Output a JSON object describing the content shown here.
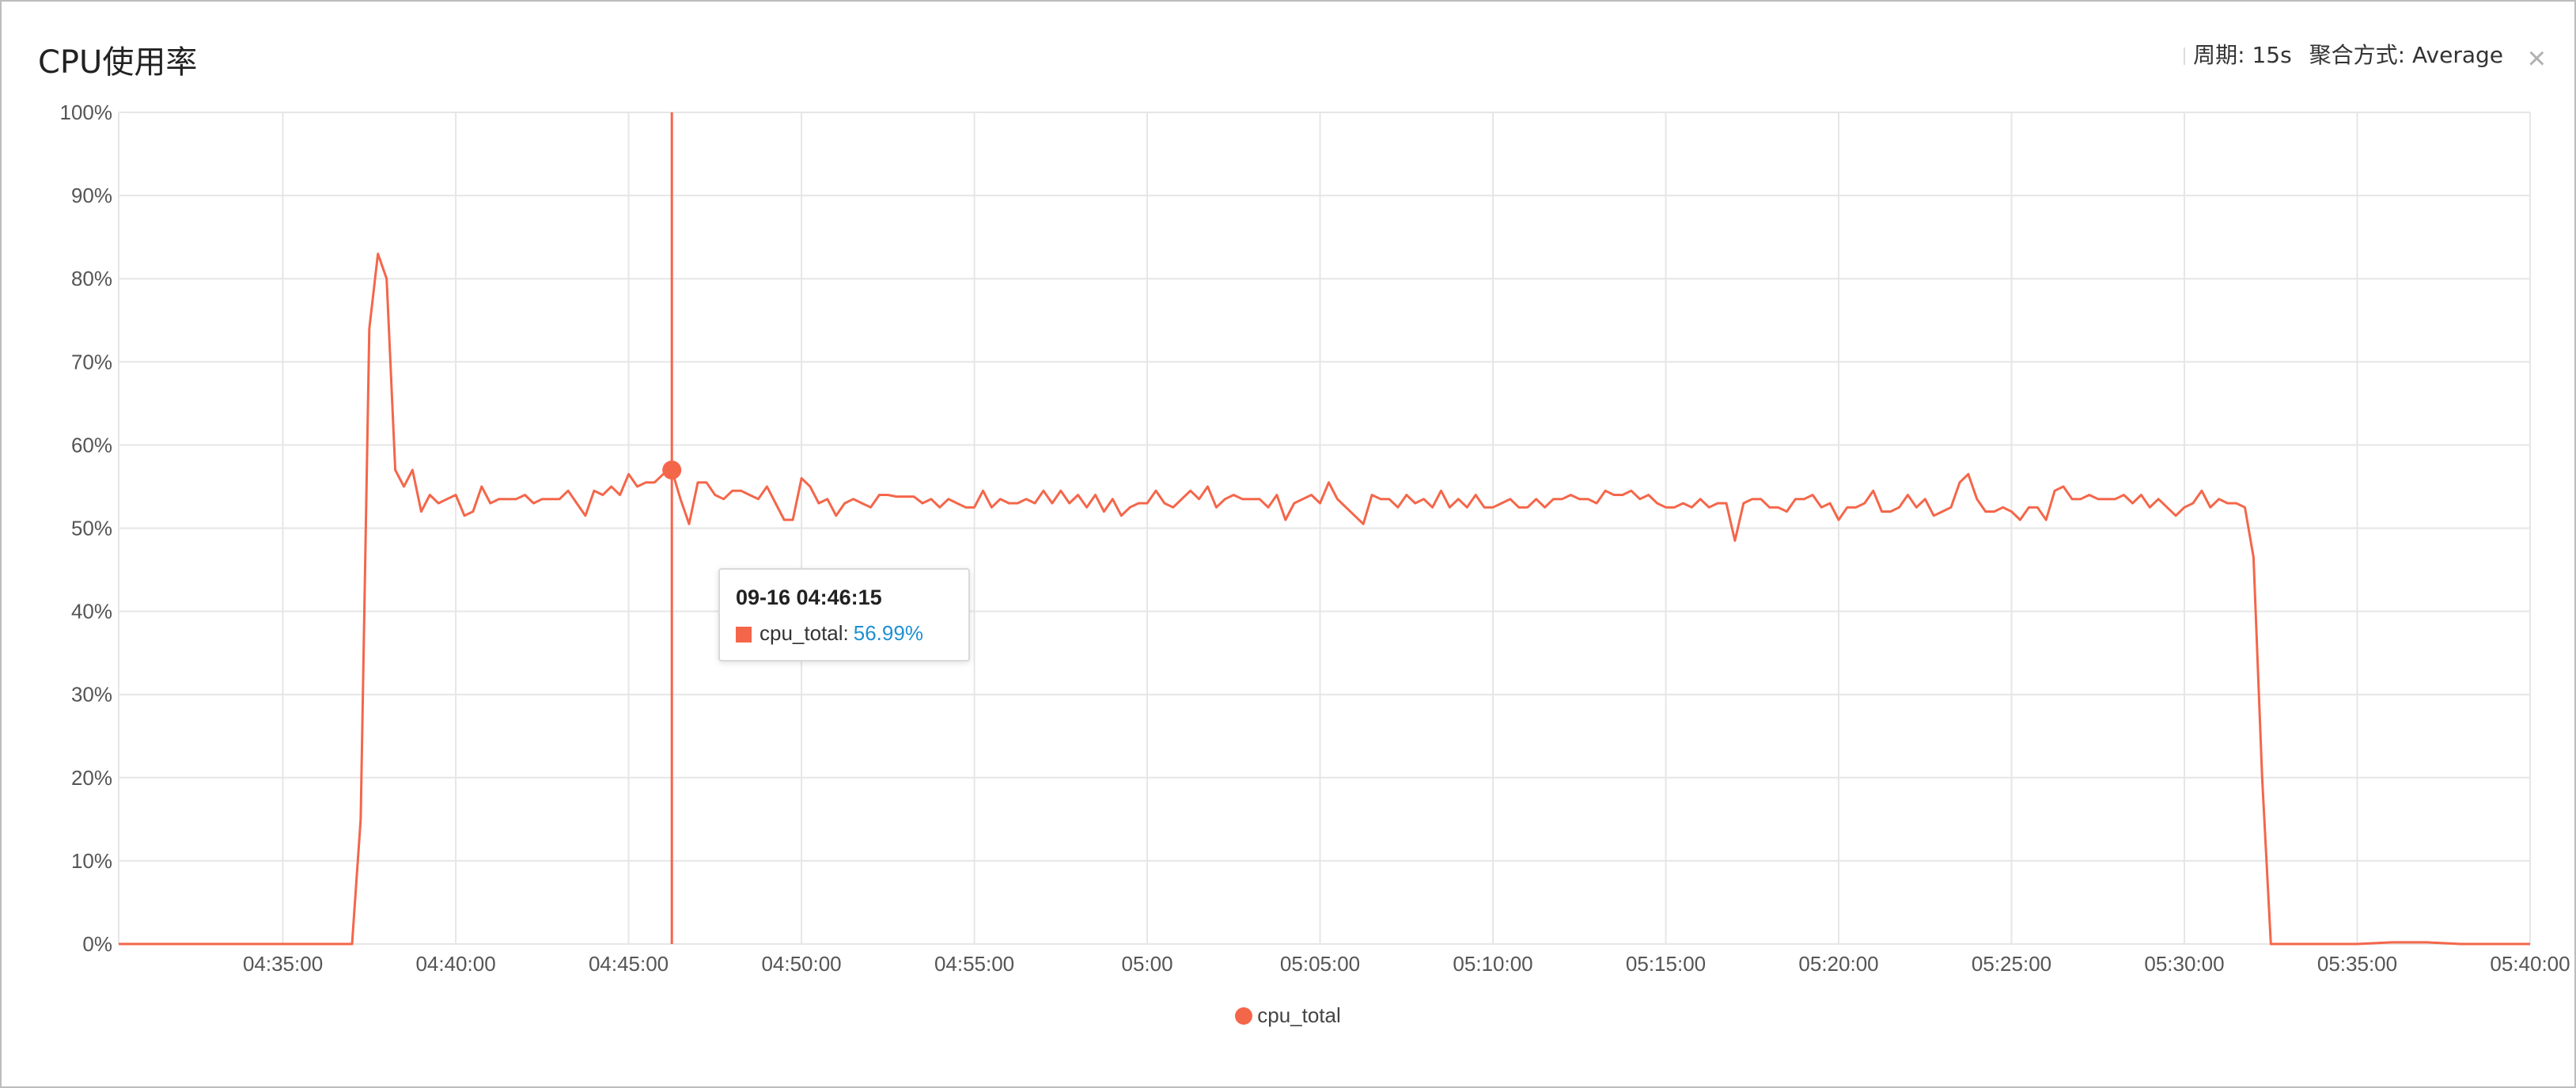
{
  "panel": {
    "title": "CPU使用率",
    "period_label": "周期: 15s",
    "aggregation_label": "聚合方式: Average",
    "close_icon": "close-icon"
  },
  "colors": {
    "series": "#f4664a",
    "grid": "#e6e6e6",
    "axis_text": "#555555",
    "tooltip_value": "#1f90d1"
  },
  "tooltip": {
    "time": "09-16 04:46:15",
    "series_name": "cpu_total",
    "value_text": "56.99%"
  },
  "legend": {
    "label": "cpu_total"
  },
  "chart_data": {
    "type": "line",
    "title": "CPU使用率",
    "xlabel": "",
    "ylabel": "",
    "ylim": [
      0,
      100
    ],
    "yticks": [
      "0%",
      "10%",
      "20%",
      "30%",
      "40%",
      "50%",
      "60%",
      "70%",
      "80%",
      "90%",
      "100%"
    ],
    "x_range": [
      "04:30:15",
      "05:40:00"
    ],
    "xticks": [
      "04:35:00",
      "04:40:00",
      "04:45:00",
      "04:50:00",
      "04:55:00",
      "05:00",
      "05:05:00",
      "05:10:00",
      "05:15:00",
      "05:20:00",
      "05:25:00",
      "05:30:00",
      "05:35:00",
      "05:40:00"
    ],
    "grid": true,
    "legend_position": "bottom",
    "highlight": {
      "x": "04:46:15",
      "y": 56.99
    },
    "series": [
      {
        "name": "cpu_total",
        "points": [
          [
            "04:30:15",
            0
          ],
          [
            "04:37:00",
            0
          ],
          [
            "04:37:15",
            15
          ],
          [
            "04:37:30",
            74
          ],
          [
            "04:37:45",
            83
          ],
          [
            "04:38:00",
            80
          ],
          [
            "04:38:15",
            57
          ],
          [
            "04:38:30",
            55
          ],
          [
            "04:38:45",
            57
          ],
          [
            "04:39:00",
            52
          ],
          [
            "04:39:15",
            54
          ],
          [
            "04:39:30",
            53
          ],
          [
            "04:39:45",
            53.5
          ],
          [
            "04:40:00",
            54
          ],
          [
            "04:40:15",
            51.5
          ],
          [
            "04:40:30",
            52
          ],
          [
            "04:40:45",
            55
          ],
          [
            "04:41:00",
            53
          ],
          [
            "04:41:15",
            53.5
          ],
          [
            "04:41:30",
            53.5
          ],
          [
            "04:41:45",
            53.5
          ],
          [
            "04:42:00",
            54
          ],
          [
            "04:42:15",
            53
          ],
          [
            "04:42:30",
            53.5
          ],
          [
            "04:42:45",
            53.5
          ],
          [
            "04:43:00",
            53.5
          ],
          [
            "04:43:15",
            54.5
          ],
          [
            "04:43:30",
            53
          ],
          [
            "04:43:45",
            51.5
          ],
          [
            "04:44:00",
            54.5
          ],
          [
            "04:44:15",
            54
          ],
          [
            "04:44:30",
            55
          ],
          [
            "04:44:45",
            54
          ],
          [
            "04:45:00",
            56.5
          ],
          [
            "04:45:15",
            55
          ],
          [
            "04:45:30",
            55.5
          ],
          [
            "04:45:45",
            55.5
          ],
          [
            "04:46:00",
            56.5
          ],
          [
            "04:46:15",
            56.99
          ],
          [
            "04:46:30",
            53.5
          ],
          [
            "04:46:45",
            50.5
          ],
          [
            "04:47:00",
            55.5
          ],
          [
            "04:47:15",
            55.5
          ],
          [
            "04:47:30",
            54
          ],
          [
            "04:47:45",
            53.5
          ],
          [
            "04:48:00",
            54.5
          ],
          [
            "04:48:15",
            54.5
          ],
          [
            "04:48:30",
            54
          ],
          [
            "04:48:45",
            53.5
          ],
          [
            "04:49:00",
            55
          ],
          [
            "04:49:15",
            53
          ],
          [
            "04:49:30",
            51
          ],
          [
            "04:49:45",
            51
          ],
          [
            "04:50:00",
            56
          ],
          [
            "04:50:15",
            55
          ],
          [
            "04:50:30",
            53
          ],
          [
            "04:50:45",
            53.5
          ],
          [
            "04:51:00",
            51.5
          ],
          [
            "04:51:15",
            53
          ],
          [
            "04:51:30",
            53.5
          ],
          [
            "04:51:45",
            53
          ],
          [
            "04:52:00",
            52.5
          ],
          [
            "04:52:15",
            54
          ],
          [
            "04:52:30",
            54
          ],
          [
            "04:52:45",
            53.8
          ],
          [
            "04:53:00",
            53.8
          ],
          [
            "04:53:15",
            53.8
          ],
          [
            "04:53:30",
            53
          ],
          [
            "04:53:45",
            53.5
          ],
          [
            "04:54:00",
            52.5
          ],
          [
            "04:54:15",
            53.5
          ],
          [
            "04:54:30",
            53
          ],
          [
            "04:54:45",
            52.5
          ],
          [
            "04:55:00",
            52.5
          ],
          [
            "04:55:15",
            54.5
          ],
          [
            "04:55:30",
            52.5
          ],
          [
            "04:55:45",
            53.5
          ],
          [
            "04:56:00",
            53
          ],
          [
            "04:56:15",
            53
          ],
          [
            "04:56:30",
            53.5
          ],
          [
            "04:56:45",
            53
          ],
          [
            "04:57:00",
            54.5
          ],
          [
            "04:57:15",
            53
          ],
          [
            "04:57:30",
            54.5
          ],
          [
            "04:57:45",
            53
          ],
          [
            "04:58:00",
            54
          ],
          [
            "04:58:15",
            52.5
          ],
          [
            "04:58:30",
            54
          ],
          [
            "04:58:45",
            52
          ],
          [
            "04:59:00",
            53.5
          ],
          [
            "04:59:15",
            51.5
          ],
          [
            "04:59:30",
            52.5
          ],
          [
            "04:59:45",
            53
          ],
          [
            "05:00:00",
            53
          ],
          [
            "05:00:15",
            54.5
          ],
          [
            "05:00:30",
            53
          ],
          [
            "05:00:45",
            52.5
          ],
          [
            "05:01:00",
            53.5
          ],
          [
            "05:01:15",
            54.5
          ],
          [
            "05:01:30",
            53.5
          ],
          [
            "05:01:45",
            55
          ],
          [
            "05:02:00",
            52.5
          ],
          [
            "05:02:15",
            53.5
          ],
          [
            "05:02:30",
            54
          ],
          [
            "05:02:45",
            53.5
          ],
          [
            "05:03:00",
            53.5
          ],
          [
            "05:03:15",
            53.5
          ],
          [
            "05:03:30",
            52.5
          ],
          [
            "05:03:45",
            54
          ],
          [
            "05:04:00",
            51
          ],
          [
            "05:04:15",
            53
          ],
          [
            "05:04:30",
            53.5
          ],
          [
            "05:04:45",
            54
          ],
          [
            "05:05:00",
            53
          ],
          [
            "05:05:15",
            55.5
          ],
          [
            "05:05:30",
            53.5
          ],
          [
            "05:05:45",
            52.5
          ],
          [
            "05:06:00",
            51.5
          ],
          [
            "05:06:15",
            50.5
          ],
          [
            "05:06:30",
            54
          ],
          [
            "05:06:45",
            53.5
          ],
          [
            "05:07:00",
            53.5
          ],
          [
            "05:07:15",
            52.5
          ],
          [
            "05:07:30",
            54
          ],
          [
            "05:07:45",
            53
          ],
          [
            "05:08:00",
            53.5
          ],
          [
            "05:08:15",
            52.5
          ],
          [
            "05:08:30",
            54.5
          ],
          [
            "05:08:45",
            52.5
          ],
          [
            "05:09:00",
            53.5
          ],
          [
            "05:09:15",
            52.5
          ],
          [
            "05:09:30",
            54
          ],
          [
            "05:09:45",
            52.5
          ],
          [
            "05:10:00",
            52.5
          ],
          [
            "05:10:15",
            53
          ],
          [
            "05:10:30",
            53.5
          ],
          [
            "05:10:45",
            52.5
          ],
          [
            "05:11:00",
            52.5
          ],
          [
            "05:11:15",
            53.5
          ],
          [
            "05:11:30",
            52.5
          ],
          [
            "05:11:45",
            53.5
          ],
          [
            "05:12:00",
            53.5
          ],
          [
            "05:12:15",
            54
          ],
          [
            "05:12:30",
            53.5
          ],
          [
            "05:12:45",
            53.5
          ],
          [
            "05:13:00",
            53
          ],
          [
            "05:13:15",
            54.5
          ],
          [
            "05:13:30",
            54
          ],
          [
            "05:13:45",
            54
          ],
          [
            "05:14:00",
            54.5
          ],
          [
            "05:14:15",
            53.5
          ],
          [
            "05:14:30",
            54
          ],
          [
            "05:14:45",
            53
          ],
          [
            "05:15:00",
            52.5
          ],
          [
            "05:15:15",
            52.5
          ],
          [
            "05:15:30",
            53
          ],
          [
            "05:15:45",
            52.5
          ],
          [
            "05:16:00",
            53.5
          ],
          [
            "05:16:15",
            52.5
          ],
          [
            "05:16:30",
            53
          ],
          [
            "05:16:45",
            53
          ],
          [
            "05:17:00",
            48.5
          ],
          [
            "05:17:15",
            53
          ],
          [
            "05:17:30",
            53.5
          ],
          [
            "05:17:45",
            53.5
          ],
          [
            "05:18:00",
            52.5
          ],
          [
            "05:18:15",
            52.5
          ],
          [
            "05:18:30",
            52
          ],
          [
            "05:18:45",
            53.5
          ],
          [
            "05:19:00",
            53.5
          ],
          [
            "05:19:15",
            54
          ],
          [
            "05:19:30",
            52.5
          ],
          [
            "05:19:45",
            53
          ],
          [
            "05:20:00",
            51
          ],
          [
            "05:20:15",
            52.5
          ],
          [
            "05:20:30",
            52.5
          ],
          [
            "05:20:45",
            53
          ],
          [
            "05:21:00",
            54.5
          ],
          [
            "05:21:15",
            52
          ],
          [
            "05:21:30",
            52
          ],
          [
            "05:21:45",
            52.5
          ],
          [
            "05:22:00",
            54
          ],
          [
            "05:22:15",
            52.5
          ],
          [
            "05:22:30",
            53.5
          ],
          [
            "05:22:45",
            51.5
          ],
          [
            "05:23:00",
            52
          ],
          [
            "05:23:15",
            52.5
          ],
          [
            "05:23:30",
            55.5
          ],
          [
            "05:23:45",
            56.5
          ],
          [
            "05:24:00",
            53.5
          ],
          [
            "05:24:15",
            52
          ],
          [
            "05:24:30",
            52
          ],
          [
            "05:24:45",
            52.5
          ],
          [
            "05:25:00",
            52
          ],
          [
            "05:25:15",
            51
          ],
          [
            "05:25:30",
            52.5
          ],
          [
            "05:25:45",
            52.5
          ],
          [
            "05:26:00",
            51
          ],
          [
            "05:26:15",
            54.5
          ],
          [
            "05:26:30",
            55
          ],
          [
            "05:26:45",
            53.5
          ],
          [
            "05:27:00",
            53.5
          ],
          [
            "05:27:15",
            54
          ],
          [
            "05:27:30",
            53.5
          ],
          [
            "05:27:45",
            53.5
          ],
          [
            "05:28:00",
            53.5
          ],
          [
            "05:28:15",
            54
          ],
          [
            "05:28:30",
            53
          ],
          [
            "05:28:45",
            54
          ],
          [
            "05:29:00",
            52.5
          ],
          [
            "05:29:15",
            53.5
          ],
          [
            "05:29:30",
            52.5
          ],
          [
            "05:29:45",
            51.5
          ],
          [
            "05:30:00",
            52.5
          ],
          [
            "05:30:15",
            53
          ],
          [
            "05:30:30",
            54.5
          ],
          [
            "05:30:45",
            52.5
          ],
          [
            "05:31:00",
            53.5
          ],
          [
            "05:31:15",
            53
          ],
          [
            "05:31:30",
            53
          ],
          [
            "05:31:45",
            52.5
          ],
          [
            "05:32:00",
            46.5
          ],
          [
            "05:32:15",
            20
          ],
          [
            "05:32:30",
            0
          ],
          [
            "05:35:00",
            0
          ],
          [
            "05:36:00",
            0.2
          ],
          [
            "05:37:00",
            0.2
          ],
          [
            "05:38:00",
            0
          ],
          [
            "05:40:00",
            0
          ]
        ]
      }
    ]
  }
}
